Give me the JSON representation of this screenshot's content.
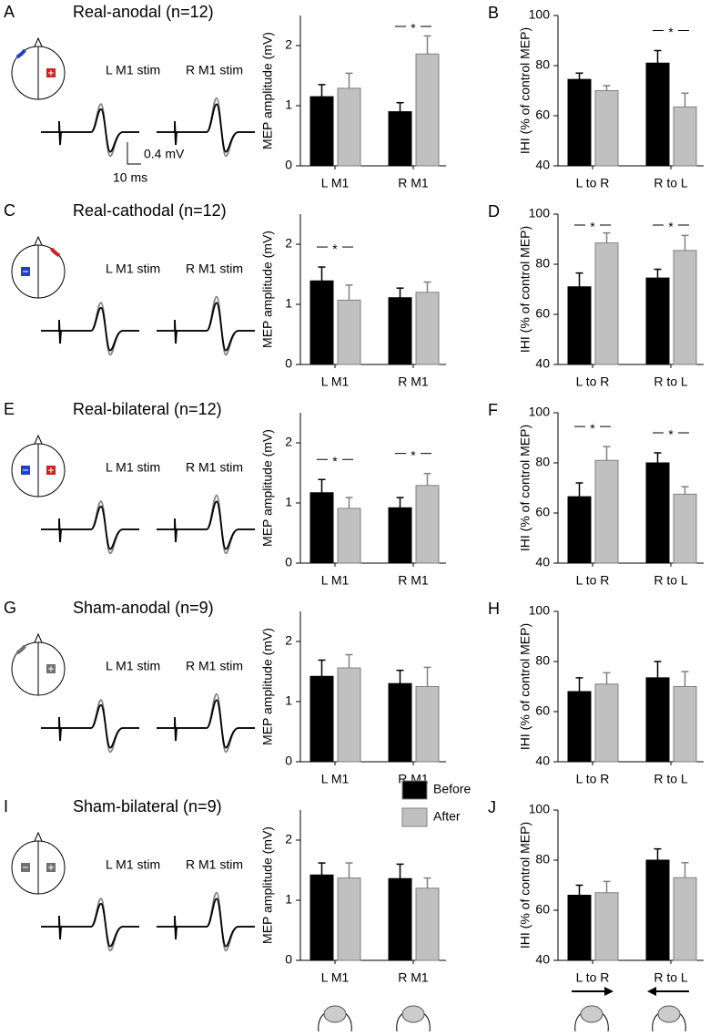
{
  "rows": [
    {
      "label": "A",
      "title": "Real-anodal (n=12)",
      "stim_labels": [
        "L M1 stim",
        "R M1 stim"
      ]
    },
    {
      "label": "C",
      "title": "Real-cathodal (n=12)",
      "stim_labels": [
        "L M1 stim",
        "R M1 stim"
      ]
    },
    {
      "label": "E",
      "title": "Real-bilateral (n=12)",
      "stim_labels": [
        "L M1 stim",
        "R M1 stim"
      ]
    },
    {
      "label": "G",
      "title": "Sham-anodal (n=9)",
      "stim_labels": [
        "L M1 stim",
        "R M1 stim"
      ]
    },
    {
      "label": "I",
      "title": "Sham-bilateral (n=9)",
      "stim_labels": [
        "L M1 stim",
        "R M1 stim"
      ]
    }
  ],
  "scale_bar": {
    "amplitude": "0.4 mV",
    "time": "10 ms"
  },
  "chart_data": [
    {
      "type": "bar",
      "ylabel": "MEP amplitude (mV)",
      "categories": [
        "L M1",
        "R M1"
      ],
      "ylim": [
        0,
        2.5
      ],
      "yticks": [
        0,
        1,
        2
      ],
      "series": [
        {
          "color": "#000000",
          "values": [
            1.15,
            0.9
          ],
          "errors": [
            0.2,
            0.15
          ]
        },
        {
          "color": "#c0c0c0",
          "values": [
            1.29,
            1.86
          ],
          "errors": [
            0.25,
            0.3
          ]
        }
      ],
      "annotations": [
        {
          "category": 1,
          "text": "*"
        }
      ]
    },
    {
      "type": "bar",
      "panel": "B",
      "ylabel": "IHI (% of control MEP)",
      "categories": [
        "L to R",
        "R to L"
      ],
      "ylim": [
        40,
        100
      ],
      "yticks": [
        40,
        60,
        80,
        100
      ],
      "series": [
        {
          "color": "#000000",
          "values": [
            74.5,
            81
          ],
          "errors": [
            2.5,
            5
          ]
        },
        {
          "color": "#c0c0c0",
          "values": [
            70,
            63.5
          ],
          "errors": [
            2,
            5.5
          ]
        }
      ],
      "annotations": [
        {
          "category": 1,
          "text": "*"
        }
      ]
    },
    {
      "type": "bar",
      "ylabel": "MEP amplitude (mV)",
      "categories": [
        "L M1",
        "R M1"
      ],
      "ylim": [
        0,
        2.5
      ],
      "yticks": [
        0,
        1,
        2
      ],
      "series": [
        {
          "color": "#000000",
          "values": [
            1.39,
            1.11
          ],
          "errors": [
            0.23,
            0.16
          ]
        },
        {
          "color": "#c0c0c0",
          "values": [
            1.07,
            1.2
          ],
          "errors": [
            0.25,
            0.17
          ]
        }
      ],
      "annotations": [
        {
          "category": 0,
          "text": "*"
        }
      ]
    },
    {
      "type": "bar",
      "panel": "D",
      "ylabel": "IHI (% of control MEP)",
      "categories": [
        "L to R",
        "R to L"
      ],
      "ylim": [
        40,
        100
      ],
      "yticks": [
        40,
        60,
        80,
        100
      ],
      "series": [
        {
          "color": "#000000",
          "values": [
            71,
            74.5
          ],
          "errors": [
            5.5,
            3.5
          ]
        },
        {
          "color": "#c0c0c0",
          "values": [
            88.5,
            85.5
          ],
          "errors": [
            4,
            6
          ]
        }
      ],
      "annotations": [
        {
          "category": 0,
          "text": "*"
        },
        {
          "category": 1,
          "text": "*"
        }
      ]
    },
    {
      "type": "bar",
      "ylabel": "MEP amplitude (mV)",
      "categories": [
        "L M1",
        "R M1"
      ],
      "ylim": [
        0,
        2.5
      ],
      "yticks": [
        0,
        1,
        2
      ],
      "series": [
        {
          "color": "#000000",
          "values": [
            1.17,
            0.92
          ],
          "errors": [
            0.22,
            0.17
          ]
        },
        {
          "color": "#c0c0c0",
          "values": [
            0.91,
            1.29
          ],
          "errors": [
            0.18,
            0.2
          ]
        }
      ],
      "annotations": [
        {
          "category": 0,
          "text": "*"
        },
        {
          "category": 1,
          "text": "*"
        }
      ]
    },
    {
      "type": "bar",
      "panel": "F",
      "ylabel": "IHI (% of control MEP)",
      "categories": [
        "L to R",
        "R to L"
      ],
      "ylim": [
        40,
        100
      ],
      "yticks": [
        40,
        60,
        80,
        100
      ],
      "series": [
        {
          "color": "#000000",
          "values": [
            66.5,
            80
          ],
          "errors": [
            5.5,
            4
          ]
        },
        {
          "color": "#c0c0c0",
          "values": [
            81,
            67.5
          ],
          "errors": [
            5.5,
            3
          ]
        }
      ],
      "annotations": [
        {
          "category": 0,
          "text": "*"
        },
        {
          "category": 1,
          "text": "*"
        }
      ]
    },
    {
      "type": "bar",
      "ylabel": "MEP amplitude (mV)",
      "categories": [
        "L M1",
        "R M1"
      ],
      "ylim": [
        0,
        2.5
      ],
      "yticks": [
        0,
        1,
        2
      ],
      "series": [
        {
          "color": "#000000",
          "values": [
            1.42,
            1.3
          ],
          "errors": [
            0.27,
            0.22
          ]
        },
        {
          "color": "#c0c0c0",
          "values": [
            1.56,
            1.25
          ],
          "errors": [
            0.22,
            0.32
          ]
        }
      ],
      "annotations": []
    },
    {
      "type": "bar",
      "panel": "H",
      "ylabel": "IHI (% of control MEP)",
      "categories": [
        "L to R",
        "R to L"
      ],
      "ylim": [
        40,
        100
      ],
      "yticks": [
        40,
        60,
        80,
        100
      ],
      "series": [
        {
          "color": "#000000",
          "values": [
            68,
            73.5
          ],
          "errors": [
            5.5,
            6.5
          ]
        },
        {
          "color": "#c0c0c0",
          "values": [
            71,
            70
          ],
          "errors": [
            4.5,
            6
          ]
        }
      ],
      "annotations": []
    },
    {
      "type": "bar",
      "legend": true,
      "ylabel": "MEP amplitude (mV)",
      "categories": [
        "L M1",
        "R M1"
      ],
      "ylim": [
        0,
        2.5
      ],
      "yticks": [
        0,
        1,
        2
      ],
      "series": [
        {
          "name": "Before",
          "color": "#000000",
          "values": [
            1.42,
            1.36
          ],
          "errors": [
            0.2,
            0.24
          ]
        },
        {
          "name": "After",
          "color": "#c0c0c0",
          "values": [
            1.37,
            1.2
          ],
          "errors": [
            0.25,
            0.17
          ]
        }
      ],
      "annotations": []
    },
    {
      "type": "bar",
      "panel": "J",
      "ylabel": "IHI (% of control MEP)",
      "categories": [
        "L to R",
        "R to L"
      ],
      "ylim": [
        40,
        100
      ],
      "yticks": [
        40,
        60,
        80,
        100
      ],
      "series": [
        {
          "color": "#000000",
          "values": [
            66,
            80
          ],
          "errors": [
            4,
            4.5
          ]
        },
        {
          "color": "#c0c0c0",
          "values": [
            67,
            73
          ],
          "errors": [
            4.5,
            6
          ]
        }
      ],
      "annotations": []
    }
  ]
}
